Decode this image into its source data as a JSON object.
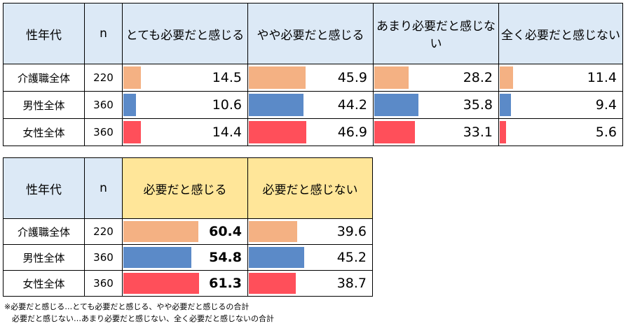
{
  "table1": {
    "headers": [
      "性年代",
      "n",
      "とても必要だと感じる",
      "やや必要だと感じる",
      "あまり必要だと感じない",
      "全く必要だと感じない"
    ],
    "rows": [
      {
        "label": "介護職全体",
        "n": "220",
        "values": [
          "14.5",
          "45.9",
          "28.2",
          "11.4"
        ]
      },
      {
        "label": "男性全体",
        "n": "360",
        "values": [
          "10.6",
          "44.2",
          "35.8",
          "9.4"
        ]
      },
      {
        "label": "女性全体",
        "n": "360",
        "values": [
          "14.4",
          "46.9",
          "33.1",
          "5.6"
        ]
      }
    ]
  },
  "table2": {
    "headers": [
      "性年代",
      "n",
      "必要だと感じる",
      "必要だと感じない"
    ],
    "rows": [
      {
        "label": "介護職全体",
        "n": "220",
        "values": [
          "60.4",
          "39.6"
        ]
      },
      {
        "label": "男性全体",
        "n": "360",
        "values": [
          "54.8",
          "45.2"
        ]
      },
      {
        "label": "女性全体",
        "n": "360",
        "values": [
          "61.3",
          "38.7"
        ]
      }
    ]
  },
  "bar_colors": [
    "#f4b183",
    "#5b8ac8",
    "#ff4f5a"
  ],
  "notes": [
    "※必要だと感じる…とても必要だと感じる、やや必要だと感じるの合計",
    "　必要だと感じない…あまり必要だと感じない、全く必要だと感じないの合計"
  ]
}
